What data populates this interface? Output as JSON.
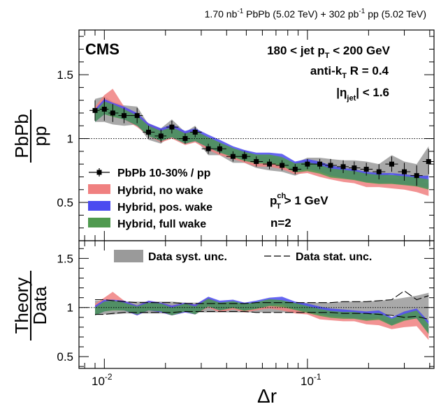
{
  "header": {
    "lumi_pbpb": "1.70 nb",
    "lumi_pbpb_exp": "-1",
    "system_pbpb": " PbPb (5.02 TeV) + 302 pb",
    "lumi_pp_exp": "-1",
    "system_pp": " pp (5.02 TeV)"
  },
  "labels": {
    "experiment": "CMS",
    "jet_pt_a": "180 < jet p",
    "jet_pt_sub": "T",
    "jet_pt_b": " < 200 GeV",
    "algo_a": "anti-k",
    "algo_sub": "T",
    "algo_b": " R = 0.4",
    "eta_a": "|η",
    "eta_sub": "jet",
    "eta_b": "| < 1.6",
    "ptch_a": "p",
    "ptch_sup": "ch",
    "ptch_sub": "T",
    "ptch_b": " > 1 GeV",
    "n": "n=2"
  },
  "legend_top": {
    "data": "PbPb 10-30% / pp",
    "no_wake": "Hybrid, no wake",
    "pos_wake": "Hybrid, pos. wake",
    "full_wake": "Hybrid, full wake"
  },
  "legend_bottom": {
    "syst": "Data syst. unc.",
    "stat": "Data stat. unc."
  },
  "colors": {
    "no_wake": "#f08080",
    "pos_wake": "#4a4af0",
    "full_wake": "#4f9a4f",
    "data": "#000000",
    "syst": "#9a9a9a"
  },
  "chart_data": [
    {
      "type": "line",
      "title": "",
      "xlabel": "Δr",
      "ylabel_num": "PbPb",
      "ylabel_den": "pp",
      "xscale": "log",
      "xlim": [
        0.0075,
        0.42
      ],
      "ylim": [
        0.2,
        1.85
      ],
      "xtick_labels": [
        "10",
        "-2",
        "10",
        "-1"
      ],
      "yticks": [
        0.5,
        1,
        1.5
      ],
      "ytick_labels": [
        "0.5",
        "1",
        "1.5"
      ],
      "reference_line": 1.0,
      "x": [
        0.009,
        0.01,
        0.011,
        0.0125,
        0.0145,
        0.0165,
        0.019,
        0.0215,
        0.025,
        0.028,
        0.0325,
        0.037,
        0.043,
        0.049,
        0.056,
        0.065,
        0.075,
        0.087,
        0.1,
        0.115,
        0.13,
        0.15,
        0.17,
        0.195,
        0.225,
        0.26,
        0.3,
        0.345,
        0.395
      ],
      "data_y": [
        1.22,
        1.23,
        1.2,
        1.18,
        1.18,
        1.05,
        1.02,
        1.09,
        1.0,
        1.05,
        0.92,
        0.92,
        0.86,
        0.86,
        0.82,
        0.8,
        0.79,
        0.76,
        0.8,
        0.8,
        0.79,
        0.78,
        0.77,
        0.76,
        0.74,
        0.8,
        0.74,
        0.71,
        0.82
      ],
      "data_stat": [
        0.08,
        0.09,
        0.07,
        0.06,
        0.06,
        0.05,
        0.05,
        0.05,
        0.04,
        0.04,
        0.04,
        0.04,
        0.04,
        0.04,
        0.04,
        0.04,
        0.04,
        0.04,
        0.04,
        0.04,
        0.05,
        0.05,
        0.05,
        0.05,
        0.06,
        0.06,
        0.07,
        0.08,
        0.1
      ],
      "data_syst": [
        0.09,
        0.1,
        0.09,
        0.08,
        0.07,
        0.06,
        0.06,
        0.06,
        0.05,
        0.05,
        0.05,
        0.05,
        0.05,
        0.05,
        0.05,
        0.05,
        0.05,
        0.05,
        0.05,
        0.05,
        0.05,
        0.05,
        0.06,
        0.06,
        0.06,
        0.07,
        0.08,
        0.09,
        0.12
      ],
      "series": [
        {
          "name": "Hybrid, no wake",
          "color": "#f08080",
          "values": [
            1.2,
            1.28,
            1.33,
            1.2,
            1.14,
            1.07,
            1.02,
            1.05,
            1.0,
            1.02,
            0.96,
            0.92,
            0.88,
            0.85,
            0.82,
            0.82,
            0.8,
            0.76,
            0.77,
            0.74,
            0.72,
            0.7,
            0.69,
            0.66,
            0.66,
            0.65,
            0.64,
            0.62,
            0.6
          ],
          "width": [
            0.05,
            0.06,
            0.06,
            0.05,
            0.05,
            0.05,
            0.05,
            0.05,
            0.05,
            0.05,
            0.05,
            0.05,
            0.04,
            0.04,
            0.04,
            0.04,
            0.04,
            0.04,
            0.04,
            0.04,
            0.04,
            0.04,
            0.04,
            0.04,
            0.04,
            0.04,
            0.04,
            0.04,
            0.05
          ]
        },
        {
          "name": "Hybrid, pos. wake",
          "color": "#4a4af0",
          "values": [
            1.18,
            1.25,
            1.23,
            1.2,
            1.15,
            1.07,
            1.03,
            1.06,
            1.01,
            1.03,
            0.98,
            0.94,
            0.9,
            0.87,
            0.85,
            0.85,
            0.84,
            0.78,
            0.8,
            0.78,
            0.75,
            0.73,
            0.72,
            0.7,
            0.69,
            0.69,
            0.68,
            0.67,
            0.66
          ],
          "width": [
            0.05,
            0.06,
            0.05,
            0.05,
            0.05,
            0.05,
            0.05,
            0.05,
            0.05,
            0.05,
            0.05,
            0.05,
            0.04,
            0.04,
            0.04,
            0.04,
            0.04,
            0.04,
            0.04,
            0.04,
            0.04,
            0.04,
            0.04,
            0.04,
            0.04,
            0.04,
            0.04,
            0.04,
            0.05
          ]
        },
        {
          "name": "Hybrid, full wake",
          "color": "#4f9a4f",
          "values": [
            1.17,
            1.24,
            1.22,
            1.19,
            1.14,
            1.06,
            1.02,
            1.05,
            1.0,
            1.02,
            0.97,
            0.93,
            0.89,
            0.86,
            0.84,
            0.84,
            0.82,
            0.77,
            0.78,
            0.76,
            0.73,
            0.72,
            0.71,
            0.69,
            0.68,
            0.68,
            0.67,
            0.66,
            0.64
          ],
          "width": [
            0.04,
            0.05,
            0.05,
            0.04,
            0.04,
            0.04,
            0.04,
            0.04,
            0.04,
            0.04,
            0.04,
            0.04,
            0.035,
            0.035,
            0.035,
            0.035,
            0.035,
            0.035,
            0.035,
            0.035,
            0.035,
            0.035,
            0.035,
            0.035,
            0.035,
            0.035,
            0.035,
            0.035,
            0.04
          ]
        }
      ]
    },
    {
      "type": "line",
      "xlabel": "Δr",
      "ylabel_num": "Theory",
      "ylabel_den": "Data",
      "xscale": "log",
      "xlim": [
        0.0075,
        0.42
      ],
      "ylim": [
        0.38,
        1.68
      ],
      "yticks": [
        0.5,
        1,
        1.5
      ],
      "ytick_labels": [
        "0.5",
        "1",
        "1.5"
      ],
      "reference_line": 1.0,
      "x": [
        0.009,
        0.01,
        0.011,
        0.0125,
        0.0145,
        0.0165,
        0.019,
        0.0215,
        0.025,
        0.028,
        0.0325,
        0.037,
        0.043,
        0.049,
        0.056,
        0.065,
        0.075,
        0.087,
        0.1,
        0.115,
        0.13,
        0.15,
        0.17,
        0.195,
        0.225,
        0.26,
        0.3,
        0.345,
        0.395
      ],
      "syst_rel": [
        0.07,
        0.07,
        0.07,
        0.06,
        0.06,
        0.06,
        0.06,
        0.06,
        0.05,
        0.05,
        0.05,
        0.05,
        0.05,
        0.05,
        0.05,
        0.05,
        0.05,
        0.05,
        0.05,
        0.05,
        0.05,
        0.06,
        0.06,
        0.06,
        0.07,
        0.08,
        0.1,
        0.12,
        0.15
      ],
      "stat_upper": [
        1.08,
        1.08,
        1.07,
        1.06,
        1.05,
        1.05,
        1.05,
        1.05,
        1.04,
        1.04,
        1.04,
        1.04,
        1.04,
        1.04,
        1.05,
        1.05,
        1.05,
        1.05,
        1.05,
        1.05,
        1.05,
        1.06,
        1.06,
        1.06,
        1.07,
        1.08,
        1.17,
        1.08,
        1.12
      ],
      "stat_lower": [
        0.93,
        0.93,
        0.94,
        0.95,
        0.95,
        0.95,
        0.95,
        0.95,
        0.96,
        0.96,
        0.96,
        0.96,
        0.96,
        0.96,
        0.95,
        0.95,
        0.95,
        0.95,
        0.95,
        0.95,
        0.95,
        0.94,
        0.94,
        0.94,
        0.93,
        0.92,
        0.9,
        0.91,
        0.88
      ],
      "series": [
        {
          "name": "Hybrid, no wake",
          "color": "#f08080",
          "values": [
            0.99,
            1.04,
            1.1,
            1.02,
            0.97,
            1.02,
            1.0,
            0.97,
            1.0,
            0.98,
            1.05,
            1.0,
            1.02,
            0.99,
            1.01,
            1.03,
            1.01,
            0.98,
            0.97,
            0.92,
            0.91,
            0.9,
            0.9,
            0.87,
            0.86,
            0.82,
            0.84,
            0.86,
            0.73
          ],
          "width": [
            0.05,
            0.06,
            0.06,
            0.05,
            0.05,
            0.05,
            0.05,
            0.05,
            0.05,
            0.05,
            0.05,
            0.05,
            0.04,
            0.04,
            0.04,
            0.04,
            0.04,
            0.04,
            0.04,
            0.04,
            0.04,
            0.04,
            0.04,
            0.04,
            0.04,
            0.04,
            0.04,
            0.05,
            0.06
          ]
        },
        {
          "name": "Hybrid, pos. wake",
          "color": "#4a4af0",
          "values": [
            0.97,
            1.02,
            1.03,
            1.02,
            0.97,
            1.02,
            1.0,
            0.97,
            1.0,
            0.98,
            1.06,
            1.02,
            1.04,
            1.01,
            1.03,
            1.06,
            1.07,
            1.02,
            1.0,
            0.97,
            0.95,
            0.94,
            0.93,
            0.92,
            0.93,
            0.86,
            0.92,
            0.94,
            0.8
          ],
          "width": [
            0.05,
            0.06,
            0.05,
            0.05,
            0.05,
            0.05,
            0.05,
            0.05,
            0.05,
            0.05,
            0.05,
            0.05,
            0.04,
            0.04,
            0.04,
            0.04,
            0.04,
            0.04,
            0.04,
            0.04,
            0.04,
            0.04,
            0.04,
            0.04,
            0.04,
            0.04,
            0.04,
            0.05,
            0.06
          ]
        },
        {
          "name": "Hybrid, full wake",
          "color": "#4f9a4f",
          "values": [
            0.96,
            1.01,
            1.02,
            1.01,
            0.97,
            1.01,
            1.0,
            0.96,
            1.0,
            0.97,
            1.05,
            1.01,
            1.03,
            1.0,
            1.02,
            1.05,
            1.04,
            1.01,
            0.98,
            0.95,
            0.93,
            0.92,
            0.92,
            0.9,
            0.91,
            0.85,
            0.9,
            0.93,
            0.78
          ],
          "width": [
            0.04,
            0.05,
            0.05,
            0.04,
            0.04,
            0.04,
            0.04,
            0.04,
            0.04,
            0.04,
            0.04,
            0.04,
            0.035,
            0.035,
            0.035,
            0.035,
            0.035,
            0.035,
            0.035,
            0.035,
            0.035,
            0.035,
            0.035,
            0.035,
            0.035,
            0.035,
            0.035,
            0.04,
            0.05
          ]
        }
      ]
    }
  ]
}
